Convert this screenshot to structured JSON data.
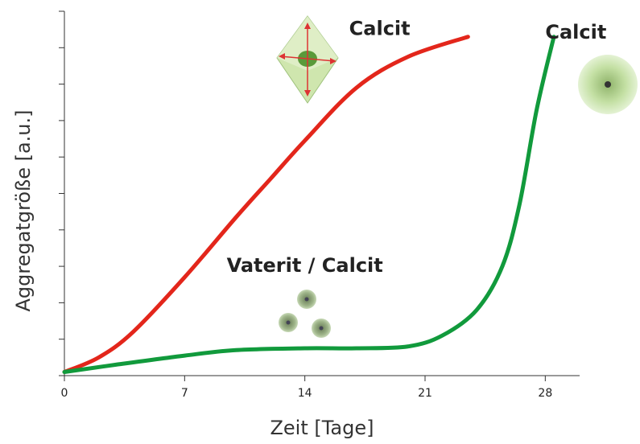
{
  "chart_data": {
    "type": "line",
    "x_label": "Zeit [Tage]",
    "y_label": "Aggregatgröße [a.u.]",
    "xlim": [
      0,
      30
    ],
    "xticks": [
      0,
      7,
      14,
      21,
      28
    ],
    "ylim": [
      0,
      10
    ],
    "yticks": [
      0,
      1,
      2,
      3,
      4,
      5,
      6,
      7,
      8,
      9,
      10
    ],
    "series": [
      {
        "x": [
          0,
          2,
          4,
          7,
          10,
          12,
          14,
          17,
          20,
          23.5
        ],
        "values": [
          0.1,
          0.5,
          1.2,
          2.7,
          4.35,
          5.4,
          6.45,
          7.9,
          8.75,
          9.3
        ],
        "color": "#e3261b"
      },
      {
        "x": [
          0,
          3,
          7,
          10,
          14,
          17,
          20,
          22,
          24,
          25.5,
          26.5,
          27.5,
          28.5
        ],
        "values": [
          0.1,
          0.3,
          0.55,
          0.7,
          0.75,
          0.75,
          0.8,
          1.1,
          1.8,
          3.0,
          4.7,
          7.3,
          9.3
        ],
        "color": "#119a3c"
      }
    ],
    "annotations": [
      {
        "text": "Calcit",
        "x": 14,
        "y": 9.5
      },
      {
        "text": "Calcit",
        "x": 28,
        "y": 9.4
      },
      {
        "text": "Vaterit / Calcit",
        "x": 14,
        "y": 3
      }
    ]
  }
}
